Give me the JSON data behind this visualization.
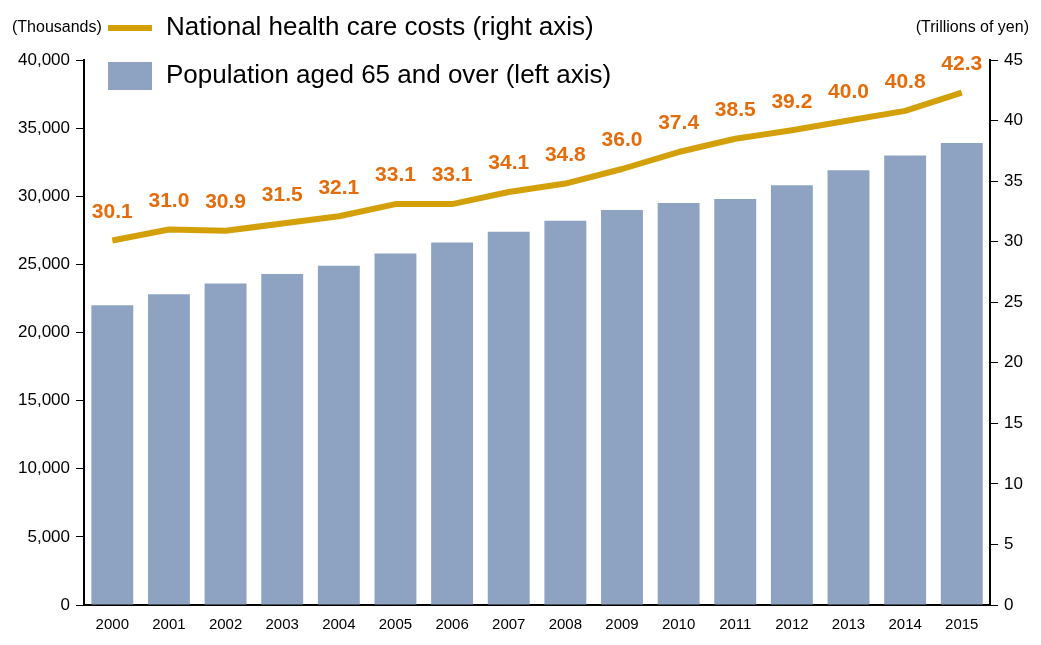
{
  "chart_data": {
    "type": "bar",
    "ylabel": "(Thousands)",
    "y2label": "(Trillions of yen)",
    "categories": [
      "2000",
      "2001",
      "2002",
      "2003",
      "2004",
      "2005",
      "2006",
      "2007",
      "2008",
      "2009",
      "2010",
      "2011",
      "2012",
      "2013",
      "2014",
      "2015"
    ],
    "series": [
      {
        "name": "National health care costs (right axis)",
        "type": "line",
        "axis": "y2",
        "color": "#d4a00a",
        "values": [
          30.1,
          31.0,
          30.9,
          31.5,
          32.1,
          33.1,
          33.1,
          34.1,
          34.8,
          36.0,
          37.4,
          38.5,
          39.2,
          40.0,
          40.8,
          42.3
        ],
        "value_labels": [
          "30.1",
          "31.0",
          "30.9",
          "31.5",
          "32.1",
          "33.1",
          "33.1",
          "34.1",
          "34.8",
          "36.0",
          "37.4",
          "38.5",
          "39.2",
          "40.0",
          "40.8",
          "42.3"
        ]
      },
      {
        "name": "Population aged 65 and over (left axis)",
        "color": "#8ea3c2",
        "values": [
          22000,
          22800,
          23600,
          24300,
          24900,
          25800,
          26600,
          27400,
          28200,
          29000,
          29500,
          29800,
          30800,
          31900,
          33000,
          33900
        ]
      }
    ],
    "ylim": [
      0,
      40000
    ],
    "yticks": [
      0,
      {
        "value": 5000,
        "label": "5,000"
      },
      {
        "value": 10000,
        "label": "10,000"
      },
      {
        "value": 15000,
        "label": "15,000"
      },
      {
        "value": 20000,
        "label": "20,000"
      },
      {
        "value": 25000,
        "label": "25,000"
      },
      {
        "value": 30000,
        "label": "30,000"
      },
      {
        "value": 35000,
        "label": "35,000"
      },
      {
        "value": 40000,
        "label": "40,000"
      }
    ],
    "y2lim": [
      0,
      45
    ],
    "y2ticks": [
      0,
      5,
      10,
      15,
      20,
      25,
      30,
      35,
      40,
      45
    ],
    "grid": false,
    "legend": "top left",
    "marker": "none"
  }
}
